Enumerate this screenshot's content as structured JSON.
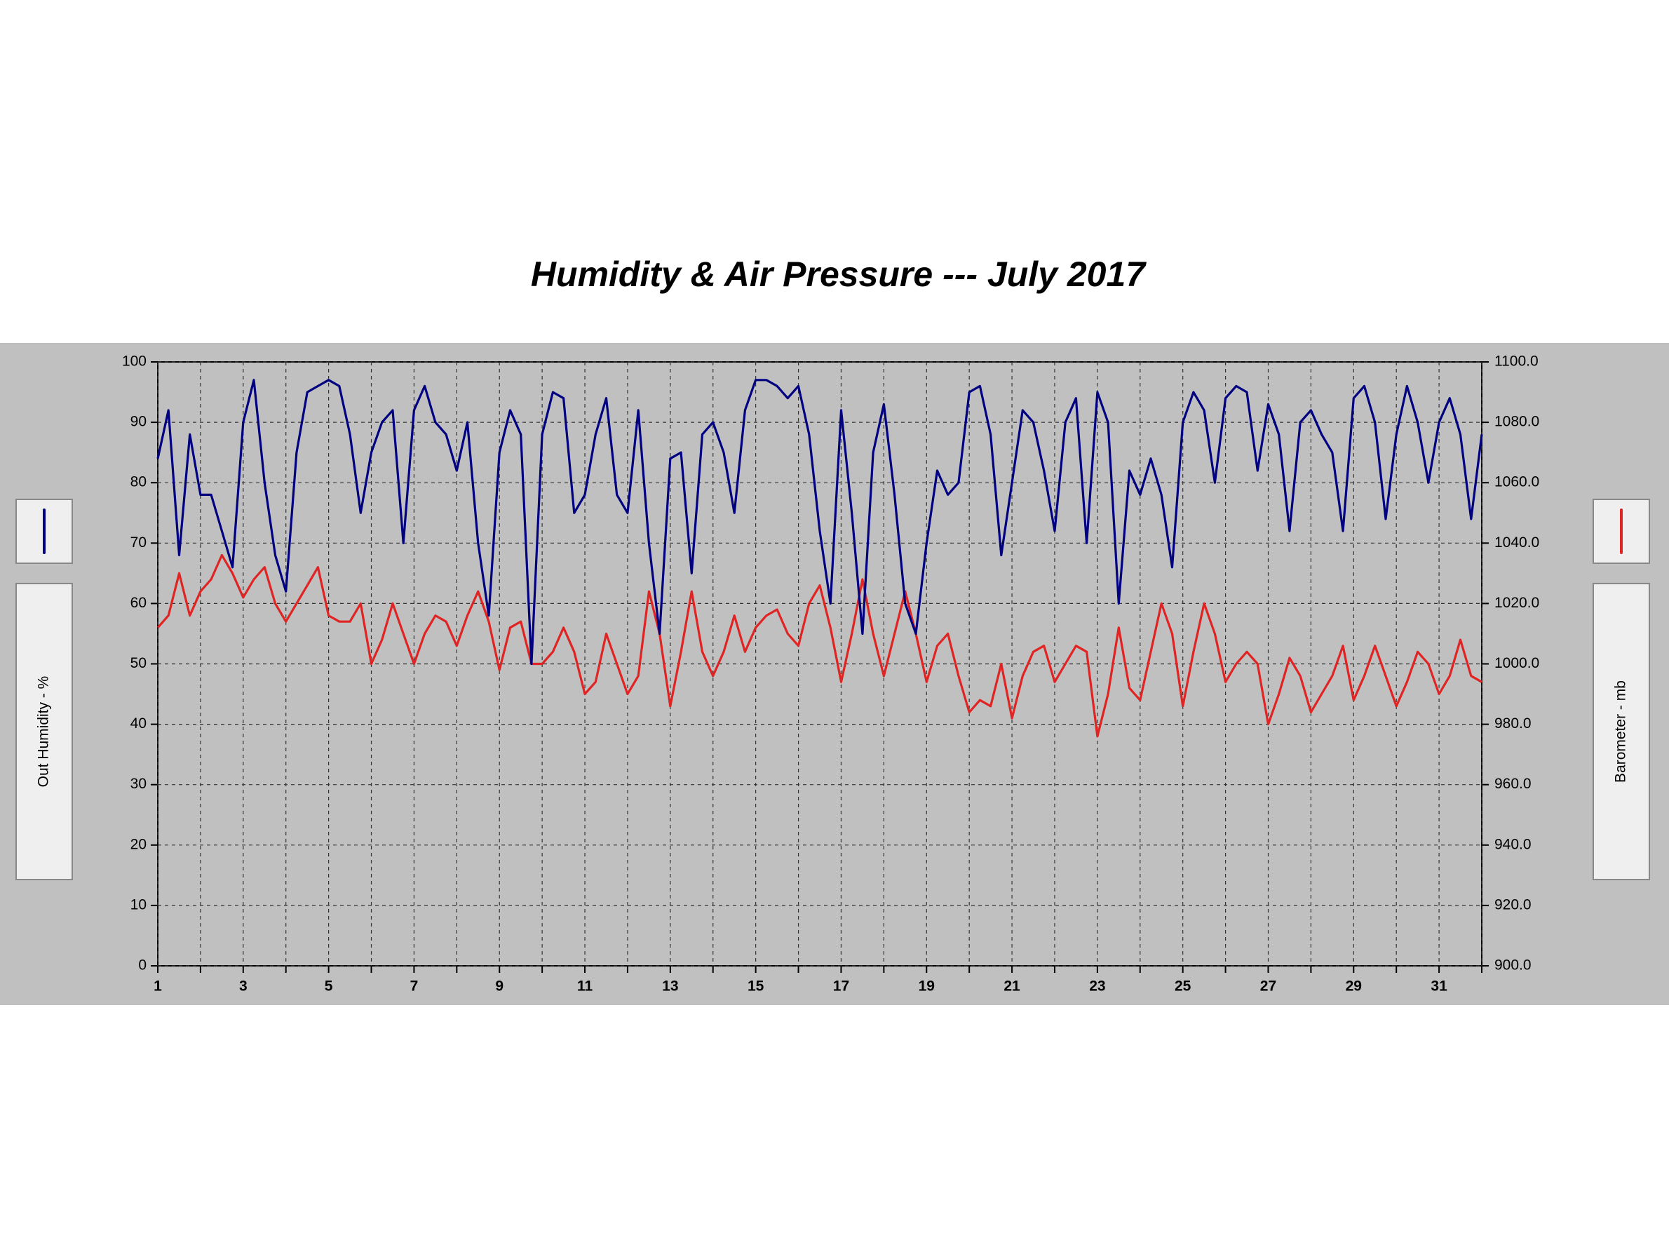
{
  "chart_data": {
    "type": "line",
    "title": "Humidity & Air Pressure --- July 2017",
    "x": [
      1,
      1.25,
      1.5,
      1.75,
      2,
      2.25,
      2.5,
      2.75,
      3,
      3.25,
      3.5,
      3.75,
      4,
      4.25,
      4.5,
      4.75,
      5,
      5.25,
      5.5,
      5.75,
      6,
      6.25,
      6.5,
      6.75,
      7,
      7.25,
      7.5,
      7.75,
      8,
      8.25,
      8.5,
      8.75,
      9,
      9.25,
      9.5,
      9.75,
      10,
      10.25,
      10.5,
      10.75,
      11,
      11.25,
      11.5,
      11.75,
      12,
      12.25,
      12.5,
      12.75,
      13,
      13.25,
      13.5,
      13.75,
      14,
      14.25,
      14.5,
      14.75,
      15,
      15.25,
      15.5,
      15.75,
      16,
      16.25,
      16.5,
      16.75,
      17,
      17.25,
      17.5,
      17.75,
      18,
      18.25,
      18.5,
      18.75,
      19,
      19.25,
      19.5,
      19.75,
      20,
      20.25,
      20.5,
      20.75,
      21,
      21.25,
      21.5,
      21.75,
      22,
      22.25,
      22.5,
      22.75,
      23,
      23.25,
      23.5,
      23.75,
      24,
      24.25,
      24.5,
      24.75,
      25,
      25.25,
      25.5,
      25.75,
      26,
      26.25,
      26.5,
      26.75,
      27,
      27.25,
      27.5,
      27.75,
      28,
      28.25,
      28.5,
      28.75,
      29,
      29.25,
      29.5,
      29.75,
      30,
      30.25,
      30.5,
      30.75,
      31,
      31.25,
      31.5,
      31.75,
      32
    ],
    "series": [
      {
        "name": "Out Humidity - %",
        "color": "#000080",
        "values": [
          84,
          92,
          68,
          88,
          78,
          78,
          72,
          66,
          90,
          97,
          80,
          68,
          62,
          85,
          95,
          96,
          97,
          96,
          88,
          75,
          85,
          90,
          92,
          70,
          92,
          96,
          90,
          88,
          82,
          90,
          70,
          58,
          85,
          92,
          88,
          50,
          88,
          95,
          94,
          75,
          78,
          88,
          94,
          78,
          75,
          92,
          70,
          55,
          84,
          85,
          65,
          88,
          90,
          85,
          75,
          92,
          97,
          97,
          96,
          94,
          96,
          88,
          72,
          60,
          92,
          75,
          55,
          85,
          93,
          78,
          60,
          55,
          70,
          82,
          78,
          80,
          95,
          96,
          88,
          68,
          80,
          92,
          90,
          82,
          72,
          90,
          94,
          70,
          95,
          90,
          60,
          82,
          78,
          84,
          78,
          66,
          90,
          95,
          92,
          80,
          94,
          96,
          95,
          82,
          93,
          88,
          72,
          90,
          92,
          88,
          85,
          72,
          94,
          96,
          90,
          74,
          88,
          96,
          90,
          80,
          90,
          94,
          88,
          74,
          88
        ]
      },
      {
        "name": "Barometer - mb",
        "color": "#e02424",
        "axis": "y2",
        "values": [
          1012,
          1016,
          1030,
          1016,
          1024,
          1028,
          1036,
          1030,
          1022,
          1028,
          1032,
          1020,
          1014,
          1020,
          1026,
          1032,
          1016,
          1014,
          1014,
          1020,
          1000,
          1008,
          1020,
          1010,
          1000,
          1010,
          1016,
          1014,
          1006,
          1016,
          1024,
          1014,
          998,
          1012,
          1014,
          1000,
          1000,
          1004,
          1012,
          1004,
          990,
          994,
          1010,
          1000,
          990,
          996,
          1024,
          1010,
          986,
          1004,
          1024,
          1004,
          996,
          1004,
          1016,
          1004,
          1012,
          1016,
          1018,
          1010,
          1006,
          1020,
          1026,
          1012,
          994,
          1010,
          1028,
          1010,
          996,
          1010,
          1024,
          1010,
          994,
          1006,
          1010,
          996,
          984,
          988,
          986,
          1000,
          982,
          996,
          1004,
          1006,
          994,
          1000,
          1006,
          1004,
          976,
          990,
          1012,
          992,
          988,
          1004,
          1020,
          1010,
          986,
          1004,
          1020,
          1010,
          994,
          1000,
          1004,
          1000,
          980,
          990,
          1002,
          996,
          984,
          990,
          996,
          1006,
          988,
          996,
          1006,
          996,
          986,
          994,
          1004,
          1000,
          990,
          996,
          1008,
          996,
          994
        ]
      }
    ],
    "xlim": [
      1,
      32
    ],
    "xticks": [
      1,
      3,
      5,
      7,
      9,
      11,
      13,
      15,
      17,
      19,
      21,
      23,
      25,
      27,
      29,
      31
    ],
    "xminor_ticks": [
      2,
      4,
      6,
      8,
      10,
      12,
      14,
      16,
      18,
      20,
      22,
      24,
      26,
      28,
      30,
      32
    ],
    "ylim": [
      0,
      100
    ],
    "yticks": [
      0,
      10,
      20,
      30,
      40,
      50,
      60,
      70,
      80,
      90,
      100
    ],
    "y2lim": [
      900,
      1100
    ],
    "y2ticks": [
      {
        "value": 900,
        "label": "900.0"
      },
      {
        "value": 920,
        "label": "920.0"
      },
      {
        "value": 940,
        "label": "940.0"
      },
      {
        "value": 960,
        "label": "960.0"
      },
      {
        "value": 980,
        "label": "980.0"
      },
      {
        "value": 1000,
        "label": "1000.0"
      },
      {
        "value": 1020,
        "label": "1020.0"
      },
      {
        "value": 1040,
        "label": "1040.0"
      },
      {
        "value": 1060,
        "label": "1060.0"
      },
      {
        "value": 1080,
        "label": "1080.0"
      },
      {
        "value": 1100,
        "label": "1100.0"
      }
    ],
    "grid": true
  }
}
